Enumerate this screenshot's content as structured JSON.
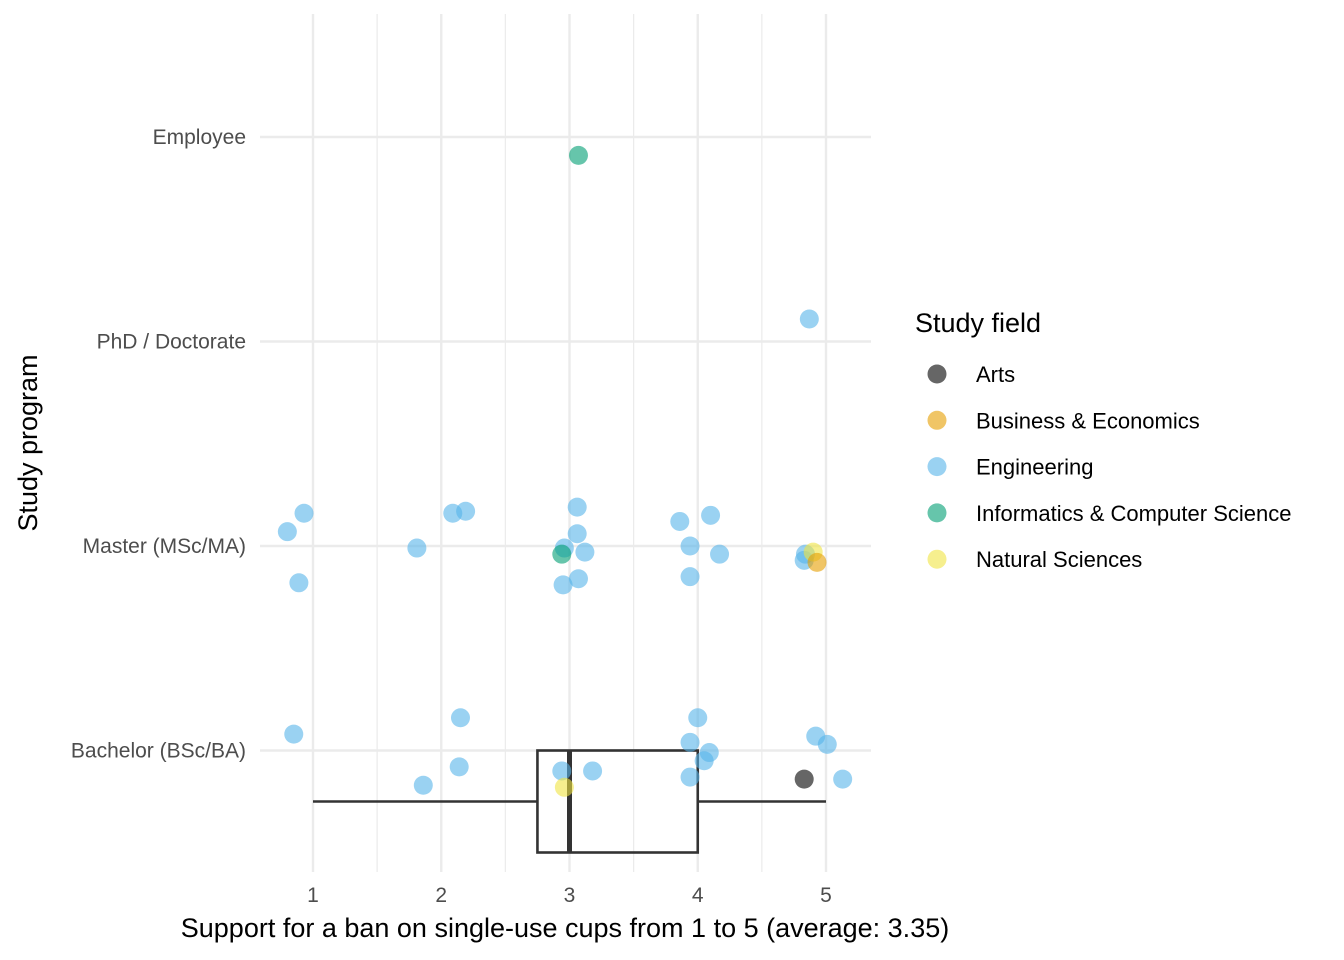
{
  "chart_data": {
    "type": "scatter",
    "title": "",
    "xlabel": "Support for a ban on single-use cups from 1 to 5 (average: 3.35)",
    "ylabel": "Study program",
    "xlim": [
      0.75,
      5.35
    ],
    "x_ticks": [
      "1",
      "2",
      "3",
      "4",
      "5"
    ],
    "categories": [
      "Bachelor (BSc/BA)",
      "Master (MSc/MA)",
      "PhD / Doctorate",
      "Employee"
    ],
    "grid": true,
    "legend": {
      "title": "Study field",
      "position": "right",
      "entries": [
        {
          "name": "Arts",
          "color": "#000000"
        },
        {
          "name": "Business & Economics",
          "color": "#E69F00"
        },
        {
          "name": "Engineering",
          "color": "#56B4E9"
        },
        {
          "name": "Informatics & Computer Science",
          "color": "#009E73"
        },
        {
          "name": "Natural Sciences",
          "color": "#F0E442"
        }
      ]
    },
    "boxplot": {
      "category": "Bachelor (BSc/BA)",
      "min": 1,
      "q1": 2.75,
      "median": 3,
      "q3": 4,
      "max": 5
    },
    "series": [
      {
        "name": "Engineering",
        "points": [
          {
            "x": 0.85,
            "y": 1.08
          },
          {
            "x": 1.86,
            "y": 0.83
          },
          {
            "x": 2.14,
            "y": 0.92
          },
          {
            "x": 2.15,
            "y": 1.16
          },
          {
            "x": 2.94,
            "y": 0.9
          },
          {
            "x": 3.18,
            "y": 0.9
          },
          {
            "x": 3.94,
            "y": 0.87
          },
          {
            "x": 3.94,
            "y": 1.04
          },
          {
            "x": 4.0,
            "y": 1.16
          },
          {
            "x": 4.05,
            "y": 0.95
          },
          {
            "x": 4.09,
            "y": 0.99
          },
          {
            "x": 4.92,
            "y": 1.07
          },
          {
            "x": 5.01,
            "y": 1.03
          },
          {
            "x": 5.13,
            "y": 0.86
          },
          {
            "x": 0.8,
            "y": 2.07
          },
          {
            "x": 0.93,
            "y": 2.16
          },
          {
            "x": 0.89,
            "y": 1.82
          },
          {
            "x": 1.81,
            "y": 1.99
          },
          {
            "x": 2.09,
            "y": 2.16
          },
          {
            "x": 2.19,
            "y": 2.17
          },
          {
            "x": 2.96,
            "y": 1.99
          },
          {
            "x": 3.06,
            "y": 2.19
          },
          {
            "x": 3.06,
            "y": 2.06
          },
          {
            "x": 3.12,
            "y": 1.97
          },
          {
            "x": 2.95,
            "y": 1.81
          },
          {
            "x": 3.07,
            "y": 1.84
          },
          {
            "x": 3.86,
            "y": 2.12
          },
          {
            "x": 4.1,
            "y": 2.15
          },
          {
            "x": 3.94,
            "y": 2.0
          },
          {
            "x": 4.17,
            "y": 1.96
          },
          {
            "x": 3.94,
            "y": 1.85
          },
          {
            "x": 4.84,
            "y": 1.96
          },
          {
            "x": 4.83,
            "y": 1.93
          },
          {
            "x": 4.87,
            "y": 3.11
          }
        ]
      },
      {
        "name": "Natural Sciences",
        "points": [
          {
            "x": 2.96,
            "y": 0.82
          },
          {
            "x": 4.9,
            "y": 1.97
          }
        ]
      },
      {
        "name": "Business & Economics",
        "points": [
          {
            "x": 4.93,
            "y": 1.92
          }
        ]
      },
      {
        "name": "Informatics & Computer Science",
        "points": [
          {
            "x": 2.94,
            "y": 1.96
          },
          {
            "x": 3.07,
            "y": 3.91
          }
        ]
      },
      {
        "name": "Arts",
        "points": [
          {
            "x": 4.83,
            "y": 0.86
          }
        ]
      }
    ]
  }
}
